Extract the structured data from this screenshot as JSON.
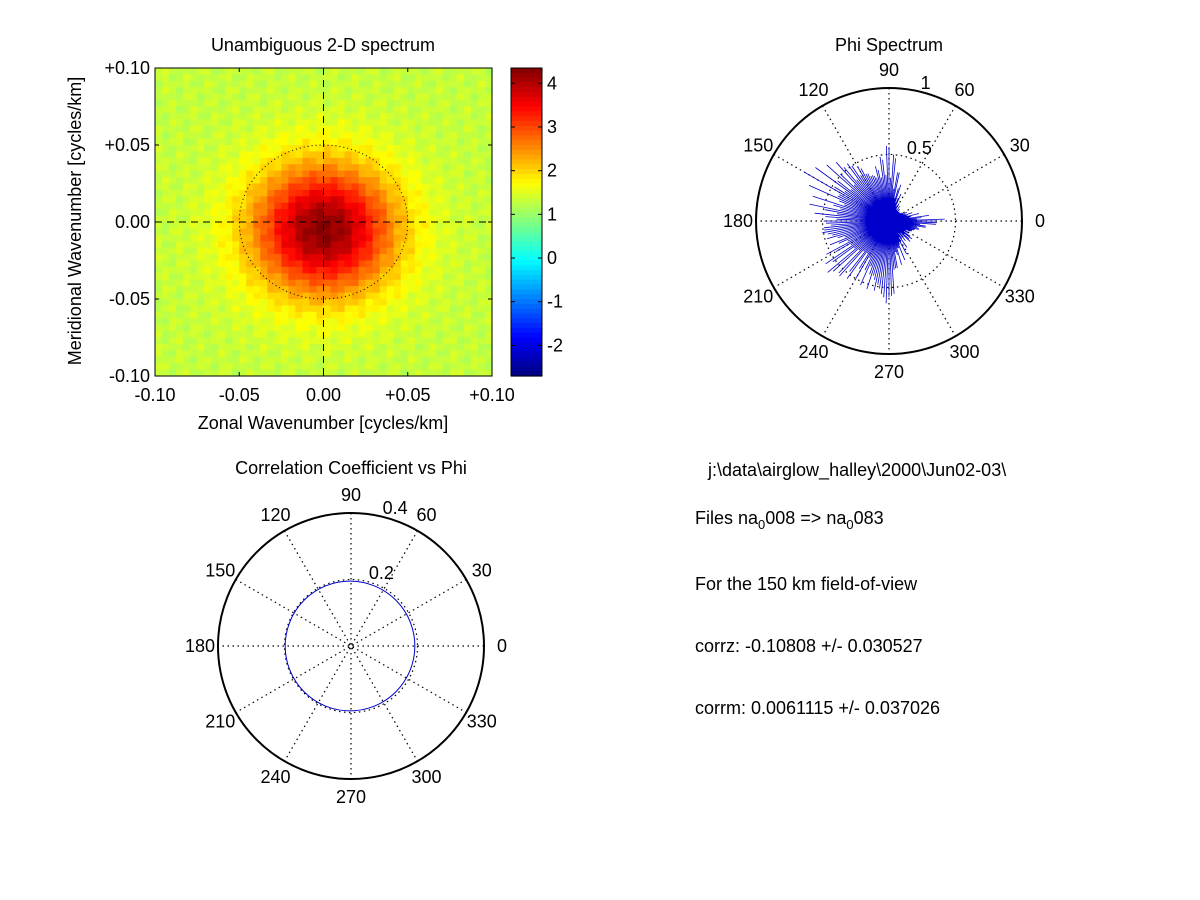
{
  "chart_data": [
    {
      "type": "heatmap",
      "title": "Unambiguous 2-D spectrum",
      "xlabel": "Zonal Wavenumber [cycles/km]",
      "ylabel": "Meridional Wavenumber [cycles/km]",
      "xlim": [
        -0.1,
        0.1
      ],
      "ylim": [
        -0.1,
        0.1
      ],
      "xticks": [
        "-0.10",
        "-0.05",
        "0.00",
        "+0.05",
        "+0.10"
      ],
      "yticks": [
        "+0.10",
        "+0.05",
        "0.00",
        "-0.05",
        "-0.10"
      ],
      "colorbar": {
        "min": -2.7,
        "max": 4.35,
        "ticks": [
          "4",
          "3",
          "2",
          "1",
          "0",
          "-1",
          "-2"
        ],
        "tick_values": [
          4,
          3,
          2,
          1,
          0,
          -1,
          -2
        ]
      },
      "peak": {
        "x": 0.0,
        "y": -0.005,
        "value": 4.3
      },
      "background_value": 1.3,
      "dotted_circle_radius": 0.05,
      "dashed_axes": true
    },
    {
      "type": "polar",
      "title": "Phi Spectrum",
      "rmax": 1,
      "rings": [
        0.5,
        1
      ],
      "ring_labels": [
        "0.5",
        "1"
      ],
      "angle_labels": [
        "0",
        "30",
        "60",
        "90",
        "120",
        "150",
        "180",
        "210",
        "240",
        "270",
        "300",
        "330"
      ],
      "angle_values": [
        0,
        30,
        60,
        90,
        120,
        150,
        180,
        210,
        240,
        270,
        300,
        330
      ],
      "series": [
        {
          "angles_deg": [
            0,
            10,
            20,
            35,
            45,
            60,
            75,
            90,
            100,
            110,
            120,
            130,
            140,
            150,
            160,
            170,
            180,
            190,
            200,
            210,
            220,
            230,
            240,
            250,
            260,
            270,
            280,
            290,
            300,
            310,
            320,
            330,
            340,
            350
          ],
          "r": [
            0.35,
            0.2,
            0.15,
            0.1,
            0.1,
            0.12,
            0.25,
            0.5,
            0.4,
            0.35,
            0.45,
            0.5,
            0.5,
            0.55,
            0.45,
            0.5,
            0.45,
            0.5,
            0.4,
            0.45,
            0.5,
            0.45,
            0.4,
            0.45,
            0.5,
            0.62,
            0.3,
            0.25,
            0.2,
            0.15,
            0.2,
            0.15,
            0.2,
            0.25
          ]
        }
      ]
    },
    {
      "type": "polar",
      "title": "Correlation Coefficient vs Phi",
      "rmax": 0.4,
      "rings": [
        0.2,
        0.4
      ],
      "ring_labels": [
        "0.2",
        "0.4"
      ],
      "angle_labels": [
        "0",
        "30",
        "60",
        "90",
        "120",
        "150",
        "180",
        "210",
        "240",
        "270",
        "300",
        "330"
      ],
      "angle_values": [
        0,
        30,
        60,
        90,
        120,
        150,
        180,
        210,
        240,
        270,
        300,
        330
      ],
      "series": [
        {
          "circle_center_x": -0.003,
          "circle_center_y": 0.0,
          "radius": 0.195
        }
      ]
    }
  ],
  "info": {
    "path": "j:\\data\\airglow_halley\\2000\\Jun02-03\\",
    "files_prefix": "Files  na",
    "files_sub1": "0",
    "files_mid": "008  =>  na",
    "files_sub2": "0",
    "files_end": "083",
    "fov": "For the  150 km field-of-view",
    "corrz": "corrz: -0.10808 +/- 0.030527",
    "corrm": "corrm: 0.0061115 +/- 0.037026"
  },
  "colors": {
    "series": "#0000cc",
    "axes": "#000000"
  }
}
